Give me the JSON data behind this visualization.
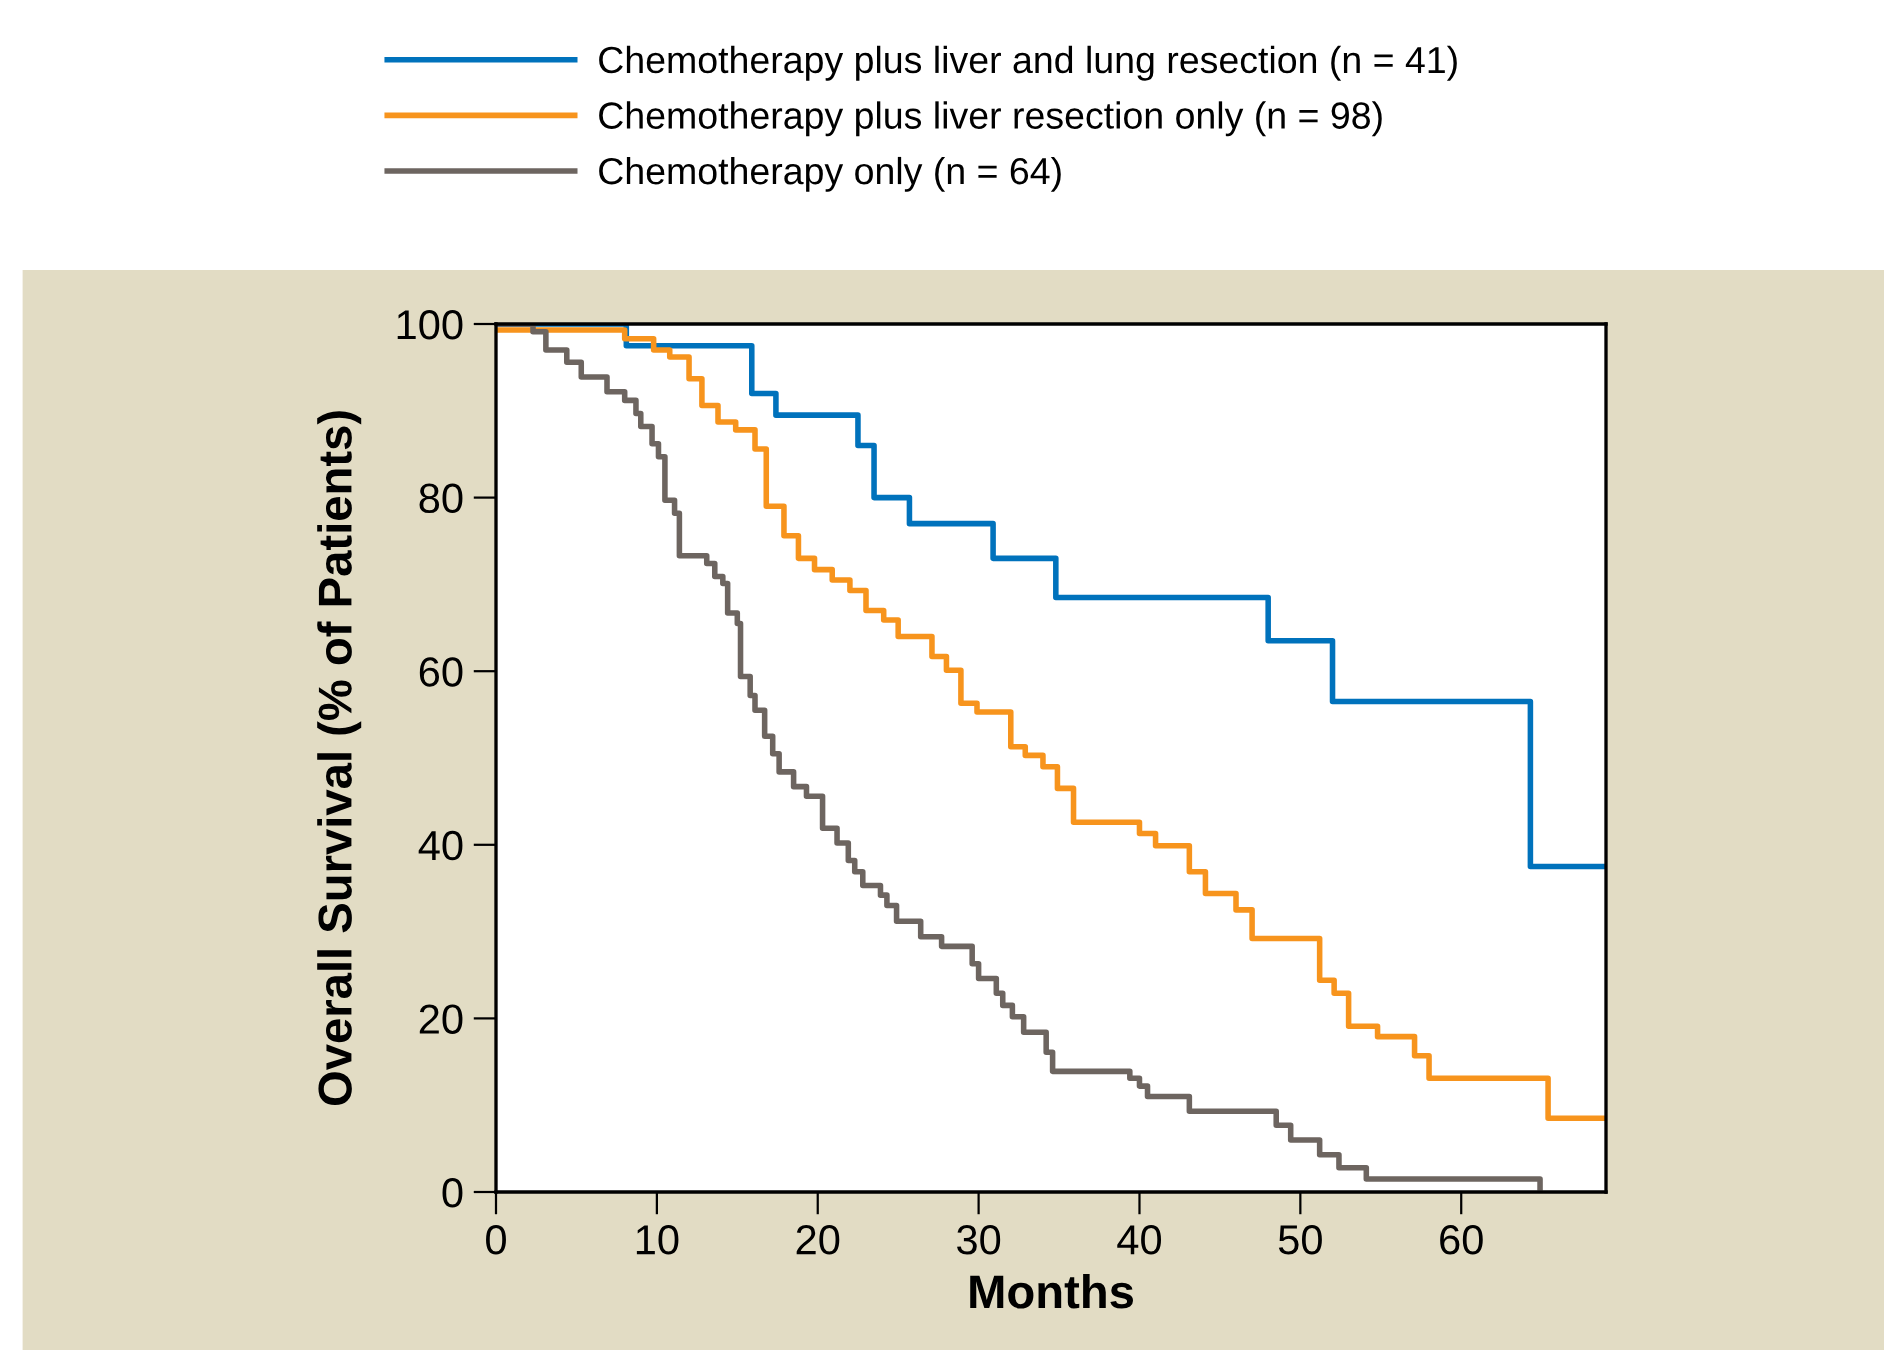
{
  "chart_data": {
    "type": "step",
    "xlabel": "Months",
    "ylabel": "Overall Survival (% of Patients)",
    "xlim": [
      0,
      69
    ],
    "ylim": [
      0,
      100
    ],
    "xticks": [
      0,
      10,
      20,
      30,
      40,
      50,
      60
    ],
    "yticks": [
      0,
      20,
      40,
      60,
      80,
      100
    ],
    "grid": false,
    "legend": "top",
    "marker": "none",
    "line_style": "solid",
    "series": [
      {
        "name": "Chemotherapy plus liver and lung resection (n = 41)",
        "color": "#0072bc",
        "x": [
          0,
          8.1,
          15.9,
          17.4,
          22.5,
          23.5,
          25.7,
          30.9,
          34.8,
          48,
          52,
          64.3,
          68.9
        ],
        "values": [
          100,
          97.5,
          92,
          89.5,
          86,
          80,
          77,
          73,
          68.5,
          63.5,
          56.5,
          37.5,
          37.5
        ]
      },
      {
        "name": "Chemotherapy plus liver resection only (n = 98)",
        "color": "#f7941d",
        "x": [
          0,
          8,
          9.8,
          10.8,
          12,
          12.8,
          13.8,
          14.9,
          16.1,
          16.8,
          17.9,
          18.8,
          19.8,
          20.9,
          22,
          23,
          24.1,
          25,
          27.1,
          28,
          28.9,
          29.9,
          32,
          32.9,
          34,
          34.9,
          35.9,
          40,
          41,
          43.1,
          44.1,
          46,
          47,
          51.2,
          52.1,
          53,
          54.8,
          57.1,
          58,
          65.4,
          69
        ],
        "values": [
          99.3,
          98.3,
          97,
          96.2,
          93.7,
          90.6,
          88.7,
          87.8,
          85.6,
          79,
          75.6,
          73,
          71.7,
          70.5,
          69.3,
          67,
          65.9,
          64,
          61.7,
          60.1,
          56.3,
          55.3,
          51.3,
          50.3,
          49,
          46.5,
          42.6,
          41.3,
          39.9,
          36.9,
          34.4,
          32.5,
          29.2,
          24.4,
          22.9,
          19.1,
          17.9,
          15.7,
          13.1,
          8.5,
          8.5
        ]
      },
      {
        "name": "Chemotherapy only (n = 64)",
        "color": "#6d6560",
        "x": [
          0,
          2.3,
          3.1,
          4.4,
          5.3,
          6.9,
          8,
          8.7,
          9,
          9.7,
          10.1,
          10.5,
          11.1,
          11.4,
          13.1,
          13.6,
          14.1,
          14.4,
          15,
          15.2,
          15.8,
          16.1,
          16.7,
          17.2,
          17.6,
          18.5,
          19.3,
          20.3,
          21.2,
          21.9,
          22.3,
          22.8,
          23.9,
          24.3,
          24.9,
          26.4,
          27.7,
          29.6,
          30,
          31.1,
          31.5,
          32.1,
          32.8,
          34.2,
          34.6,
          39.4,
          40,
          40.5,
          43.1,
          48.5,
          49.4,
          51.2,
          52.4,
          54.1,
          64.9
        ],
        "values": [
          100,
          99.1,
          97,
          95.6,
          93.9,
          92.2,
          91.2,
          89.7,
          88.2,
          86.2,
          84.7,
          79.7,
          78.2,
          73.3,
          72.4,
          70.9,
          70.1,
          66.7,
          65.5,
          59.4,
          57.2,
          55.5,
          52.5,
          50.5,
          48.4,
          46.7,
          45.6,
          41.9,
          40.2,
          38.2,
          36.9,
          35.3,
          34.2,
          33,
          31.2,
          29.4,
          28.3,
          26.3,
          24.6,
          22.9,
          21.5,
          20.2,
          18.4,
          16.1,
          13.9,
          13.1,
          12.2,
          11,
          9.3,
          7.7,
          6,
          4.3,
          2.8,
          1.5,
          0.5
        ]
      }
    ]
  }
}
